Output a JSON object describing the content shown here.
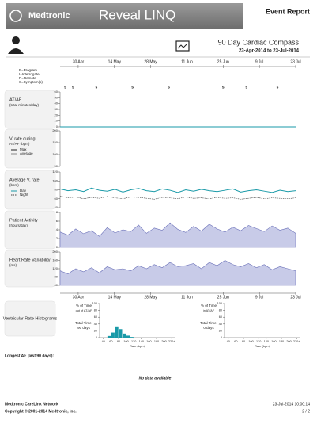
{
  "header": {
    "brand": "Medtronic",
    "product": "Reveal LINQ",
    "report": "Event Report",
    "title": "90 Day Cardiac Compass",
    "range": "23-Apr-2014 to 23-Jul-2014"
  },
  "timeline": {
    "xlim": [
      "2014-04-23",
      "2014-07-23"
    ],
    "xticks": [
      {
        "value": "2014-04-30",
        "label": "30 Apr"
      },
      {
        "value": "2014-05-14",
        "label": "14 May"
      },
      {
        "value": "2014-05-28",
        "label": "28 May"
      },
      {
        "value": "2014-06-11",
        "label": "11 Jun"
      },
      {
        "value": "2014-06-25",
        "label": "25 Jun"
      },
      {
        "value": "2014-07-09",
        "label": "9 Jul"
      },
      {
        "value": "2014-07-23",
        "label": "23 Jul"
      }
    ],
    "event_legend": [
      "P=Program",
      "I=Interrogate",
      "R=Remote",
      "S=Symptom(s)"
    ],
    "events": [
      {
        "date": "2014-04-25",
        "label": "s"
      },
      {
        "date": "2014-04-28",
        "label": "s"
      },
      {
        "date": "2014-05-07",
        "label": "s"
      },
      {
        "date": "2014-05-21",
        "label": "s"
      },
      {
        "date": "2014-06-04",
        "label": "s"
      },
      {
        "date": "2014-06-25",
        "label": "s"
      },
      {
        "date": "2014-07-04",
        "label": "s"
      },
      {
        "date": "2014-07-16",
        "label": "s"
      }
    ],
    "panels": [
      {
        "title": "AT/AF",
        "unit": "(total minutes/day)",
        "ylim": [
          0,
          60
        ],
        "yticks": [
          0,
          10,
          20,
          30,
          40,
          50,
          60
        ],
        "series": [
          {
            "color": "#1a9aa8",
            "style": "line",
            "values": [
              0,
              0,
              0,
              0,
              0,
              0,
              0,
              0,
              0,
              0,
              0,
              0,
              0,
              0,
              0,
              0,
              0,
              0,
              0,
              0,
              0,
              0,
              0,
              0,
              0,
              0,
              0,
              0,
              0,
              0,
              0
            ]
          }
        ]
      },
      {
        "title": "V. rate during",
        "unit": "AT/AF (bpm)",
        "ylim": [
          50,
          200
        ],
        "yticks": [
          50,
          100,
          150,
          200
        ],
        "series": [
          {
            "name": "Max",
            "color": "#222",
            "style": "line",
            "values": []
          },
          {
            "name": "Average",
            "color": "#888",
            "style": "line",
            "values": []
          }
        ]
      },
      {
        "title": "Average V. rate",
        "unit": "(bpm)",
        "ylim": [
          40,
          120
        ],
        "yticks": [
          40,
          60,
          80,
          100,
          120
        ],
        "series": [
          {
            "name": "Day",
            "color": "#1a9aa8",
            "style": "line",
            "values": [
              82,
              78,
              80,
              76,
              84,
              79,
              77,
              81,
              75,
              80,
              83,
              78,
              76,
              82,
              79,
              74,
              80,
              77,
              81,
              78,
              76,
              79,
              82,
              75,
              78,
              80,
              77,
              74,
              79,
              76,
              78
            ]
          },
          {
            "name": "Night",
            "color": "#444",
            "style": "dashed",
            "values": [
              66,
              62,
              64,
              60,
              63,
              61,
              65,
              62,
              60,
              64,
              63,
              61,
              59,
              63,
              62,
              60,
              64,
              61,
              62,
              60,
              63,
              61,
              62,
              59,
              61,
              63,
              60,
              62,
              61,
              60,
              62
            ]
          }
        ]
      },
      {
        "title": "Patient Activity",
        "unit": "(hours/day)",
        "ylim": [
          0,
          8
        ],
        "yticks": [
          0,
          2,
          4,
          6,
          8
        ],
        "series": [
          {
            "color": "#6a70b8",
            "style": "area",
            "values": [
              3.5,
              2.8,
              4.2,
              3.1,
              3.8,
              2.5,
              4.5,
              3.3,
              4.0,
              3.6,
              5.1,
              3.2,
              4.4,
              3.9,
              5.6,
              4.1,
              3.4,
              4.8,
              3.7,
              5.3,
              4.2,
              3.5,
              4.6,
              3.8,
              5.0,
              4.3,
              3.6,
              4.9,
              3.9,
              4.4,
              3.2
            ]
          }
        ]
      },
      {
        "title": "Heart Rate Variability",
        "unit": "(ms)",
        "ylim": [
          40,
          200
        ],
        "yticks": [
          40,
          80,
          120,
          160,
          200
        ],
        "series": [
          {
            "color": "#6a70b8",
            "style": "area",
            "values": [
              110,
              95,
              120,
              105,
              125,
              100,
              130,
              115,
              120,
              110,
              135,
              120,
              140,
              125,
              150,
              130,
              135,
              145,
              120,
              150,
              135,
              160,
              140,
              130,
              145,
              125,
              140,
              115,
              130,
              120,
              110
            ]
          }
        ]
      }
    ]
  },
  "histograms": {
    "title": "Ventricular Rate Histograms",
    "xlabel": "Rate (bpm)",
    "xlim": [
      30,
      230
    ],
    "ylim": [
      0,
      100
    ],
    "yticks": [
      0,
      20,
      40,
      60,
      80,
      100
    ],
    "xticks": [
      40,
      60,
      80,
      100,
      120,
      140,
      160,
      180,
      200,
      {
        "value": 220,
        "label": "220+"
      }
    ],
    "items": [
      {
        "ylabel": "% of Time",
        "note": "out of AT/AF",
        "total": "Total Time:",
        "total_value": "90 days",
        "color": "#1a9aa8",
        "bins": [
          50,
          60,
          70,
          80,
          90,
          100,
          110,
          120
        ],
        "counts": [
          5,
          15,
          33,
          25,
          12,
          6,
          2
        ]
      },
      {
        "ylabel": "% of Time",
        "note": "in AT/AF",
        "total": "Total Time:",
        "total_value": "0 days",
        "color": "#1a9aa8"
      }
    ]
  },
  "longest_af": {
    "label": "Longest AF (last 90 days):",
    "message": "No data available"
  },
  "footer": {
    "network": "Medtronic CareLink Network",
    "copyright": "Copyright © 2001-2014 Medtronic, Inc.",
    "timestamp": "23-Jul-2014 10:00:14",
    "page": "2 / 2"
  }
}
